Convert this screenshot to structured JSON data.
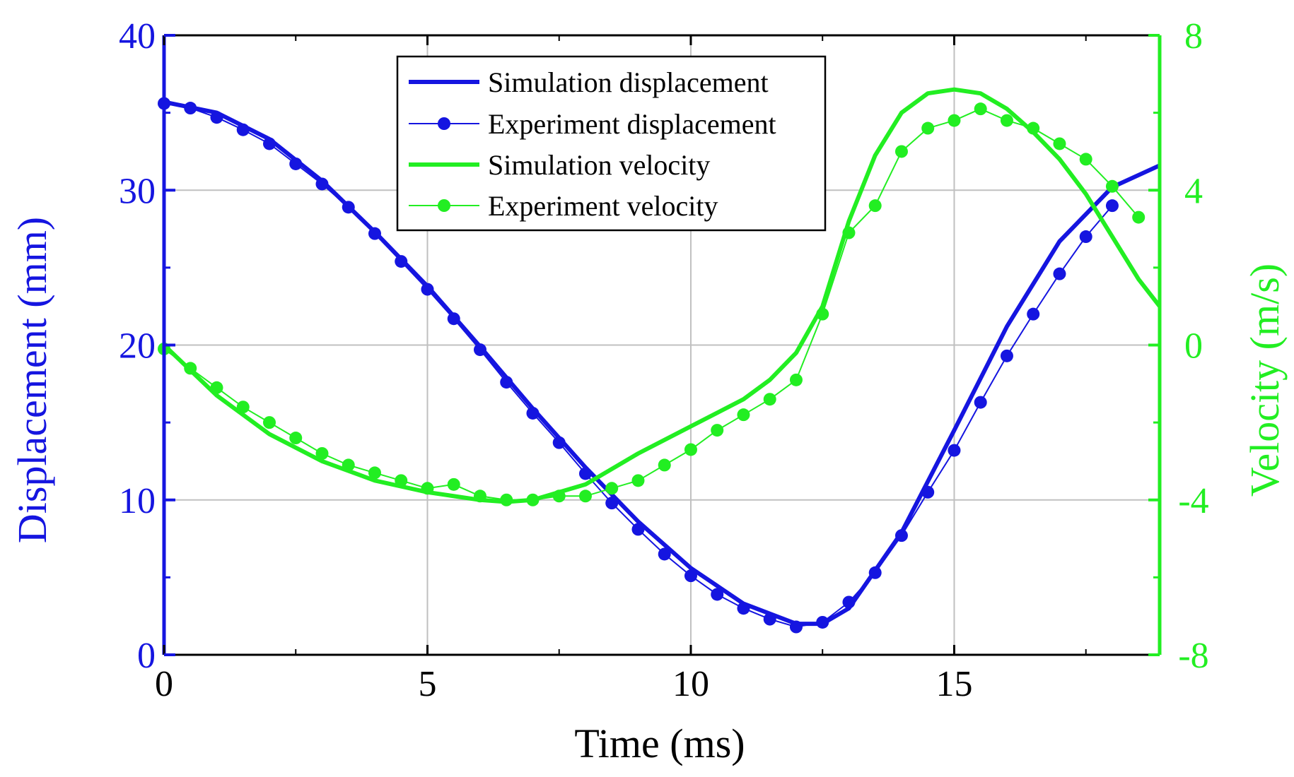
{
  "colors": {
    "displacement": "#1515e0",
    "velocity": "#22ee22",
    "frame": "#000000",
    "grid": "#c0c0c0",
    "background": "#ffffff"
  },
  "chart_data": {
    "type": "line",
    "title": "",
    "xlabel": "Time (ms)",
    "ylabel_left": "Displacement (mm)",
    "ylabel_right": "Velocity (m/s)",
    "xlim": [
      0,
      18.9
    ],
    "ylim_left": [
      0,
      40
    ],
    "ylim_right": [
      -8,
      8
    ],
    "x_ticks": [
      0,
      5,
      10,
      15
    ],
    "x_tick_labels": [
      "0",
      "5",
      "10",
      "15"
    ],
    "y_left_ticks": [
      0,
      10,
      20,
      30,
      40
    ],
    "y_left_tick_labels": [
      "0",
      "10",
      "20",
      "30",
      "40"
    ],
    "y_right_ticks": [
      -8,
      -4,
      0,
      4,
      8
    ],
    "y_right_tick_labels": [
      "-8",
      "-4",
      "0",
      "4",
      "8"
    ],
    "grid": true,
    "legend": {
      "position": "top-center",
      "entries": [
        "Simulation displacement",
        "Experiment displacement",
        "Simulation velocity",
        "Experiment velocity"
      ]
    },
    "series": [
      {
        "name": "Simulation displacement",
        "axis": "left",
        "style": "thick-line",
        "x": [
          0,
          1,
          2,
          3,
          4,
          5,
          6,
          7,
          8,
          9,
          10,
          11,
          12,
          12.5,
          13,
          14,
          15,
          16,
          17,
          18,
          18.9
        ],
        "y": [
          35.7,
          35.0,
          33.3,
          30.6,
          27.3,
          23.8,
          19.9,
          15.9,
          12.1,
          8.6,
          5.6,
          3.3,
          2.0,
          2.0,
          3.0,
          7.9,
          14.5,
          21.2,
          26.7,
          30.2,
          31.6
        ]
      },
      {
        "name": "Experiment displacement",
        "axis": "left",
        "style": "thin-line-markers",
        "x": [
          0,
          0.5,
          1,
          1.5,
          2,
          2.5,
          3,
          3.5,
          4,
          4.5,
          5,
          5.5,
          6,
          6.5,
          7,
          7.5,
          8,
          8.5,
          9,
          9.5,
          10,
          10.5,
          11,
          11.5,
          12,
          12.5,
          13,
          13.5,
          14,
          14.5,
          15,
          15.5,
          16,
          16.5,
          17,
          17.5,
          18
        ],
        "y": [
          35.6,
          35.3,
          34.7,
          33.9,
          33.0,
          31.7,
          30.4,
          28.9,
          27.2,
          25.4,
          23.6,
          21.7,
          19.7,
          17.6,
          15.6,
          13.7,
          11.7,
          9.8,
          8.1,
          6.5,
          5.1,
          3.9,
          3.0,
          2.3,
          1.8,
          2.1,
          3.4,
          5.3,
          7.7,
          10.5,
          13.2,
          16.3,
          19.3,
          22.0,
          24.6,
          27.0,
          29.0
        ]
      },
      {
        "name": "Simulation velocity",
        "axis": "right",
        "style": "thick-line",
        "x": [
          0,
          1,
          2,
          3,
          4,
          5,
          6,
          6.5,
          7,
          8,
          9,
          10,
          11,
          11.5,
          12,
          12.5,
          13,
          13.5,
          14,
          14.5,
          15,
          15.5,
          16,
          16.5,
          17,
          17.5,
          18,
          18.5,
          18.9
        ],
        "y": [
          0,
          -1.3,
          -2.3,
          -3.0,
          -3.5,
          -3.8,
          -4.0,
          -4.05,
          -4.0,
          -3.6,
          -2.8,
          -2.1,
          -1.4,
          -0.9,
          -0.2,
          1.0,
          3.2,
          4.9,
          6.0,
          6.5,
          6.6,
          6.5,
          6.1,
          5.5,
          4.8,
          3.9,
          2.8,
          1.7,
          1.0
        ]
      },
      {
        "name": "Experiment velocity",
        "axis": "right",
        "style": "thin-line-markers",
        "x": [
          0,
          0.5,
          1,
          1.5,
          2,
          2.5,
          3,
          3.5,
          4,
          4.5,
          5,
          5.5,
          6,
          6.5,
          7,
          7.5,
          8,
          8.5,
          9,
          9.5,
          10,
          10.5,
          11,
          11.5,
          12,
          12.5,
          13,
          13.5,
          14,
          14.5,
          15,
          15.5,
          16,
          16.5,
          17,
          17.5,
          18,
          18.5
        ],
        "y": [
          -0.1,
          -0.6,
          -1.1,
          -1.6,
          -2.0,
          -2.4,
          -2.8,
          -3.1,
          -3.3,
          -3.5,
          -3.7,
          -3.6,
          -3.9,
          -4.0,
          -4.0,
          -3.9,
          -3.9,
          -3.7,
          -3.5,
          -3.1,
          -2.7,
          -2.2,
          -1.8,
          -1.4,
          -0.9,
          0.8,
          2.9,
          3.6,
          5.0,
          5.6,
          5.8,
          6.1,
          5.8,
          5.6,
          5.2,
          4.8,
          4.1,
          3.3
        ]
      }
    ]
  }
}
